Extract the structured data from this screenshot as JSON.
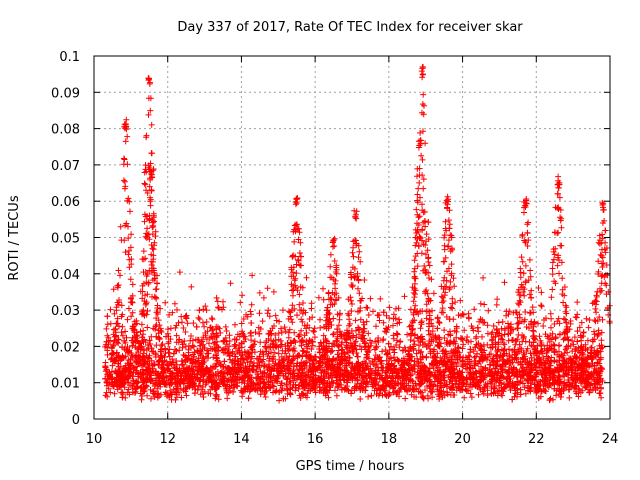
{
  "chart_data": {
    "type": "scatter",
    "title": "Day 337 of 2017, Rate Of TEC Index for receiver skar",
    "xlabel": "GPS time / hours",
    "ylabel": "ROTI / TECUs",
    "xlim": [
      10,
      24
    ],
    "ylim": [
      0,
      0.1
    ],
    "x_ticks": [
      10,
      12,
      14,
      16,
      18,
      20,
      22,
      24
    ],
    "y_ticks": [
      0,
      0.01,
      0.02,
      0.03,
      0.04,
      0.05,
      0.06,
      0.07,
      0.08,
      0.09,
      0.1
    ],
    "x_tick_labels": [
      "10",
      "12",
      "14",
      "16",
      "18",
      "20",
      "22",
      "24"
    ],
    "y_tick_labels": [
      "0",
      "0.01",
      "0.02",
      "0.03",
      "0.04",
      "0.05",
      "0.06",
      "0.07",
      "0.08",
      "0.09",
      "0.1"
    ],
    "grid": true,
    "marker": "+",
    "color": "#ff0000",
    "x_range_observed": [
      10.3,
      23.8
    ],
    "baseline_band": [
      0.005,
      0.02
    ],
    "peaks": [
      {
        "x": 10.85,
        "y": 0.083
      },
      {
        "x": 11.5,
        "y": 0.094
      },
      {
        "x": 11.55,
        "y": 0.069
      },
      {
        "x": 15.5,
        "y": 0.061
      },
      {
        "x": 16.5,
        "y": 0.05
      },
      {
        "x": 17.1,
        "y": 0.058
      },
      {
        "x": 18.9,
        "y": 0.097
      },
      {
        "x": 18.85,
        "y": 0.078
      },
      {
        "x": 19.6,
        "y": 0.062
      },
      {
        "x": 21.7,
        "y": 0.061
      },
      {
        "x": 22.6,
        "y": 0.067
      },
      {
        "x": 23.8,
        "y": 0.06
      }
    ]
  }
}
